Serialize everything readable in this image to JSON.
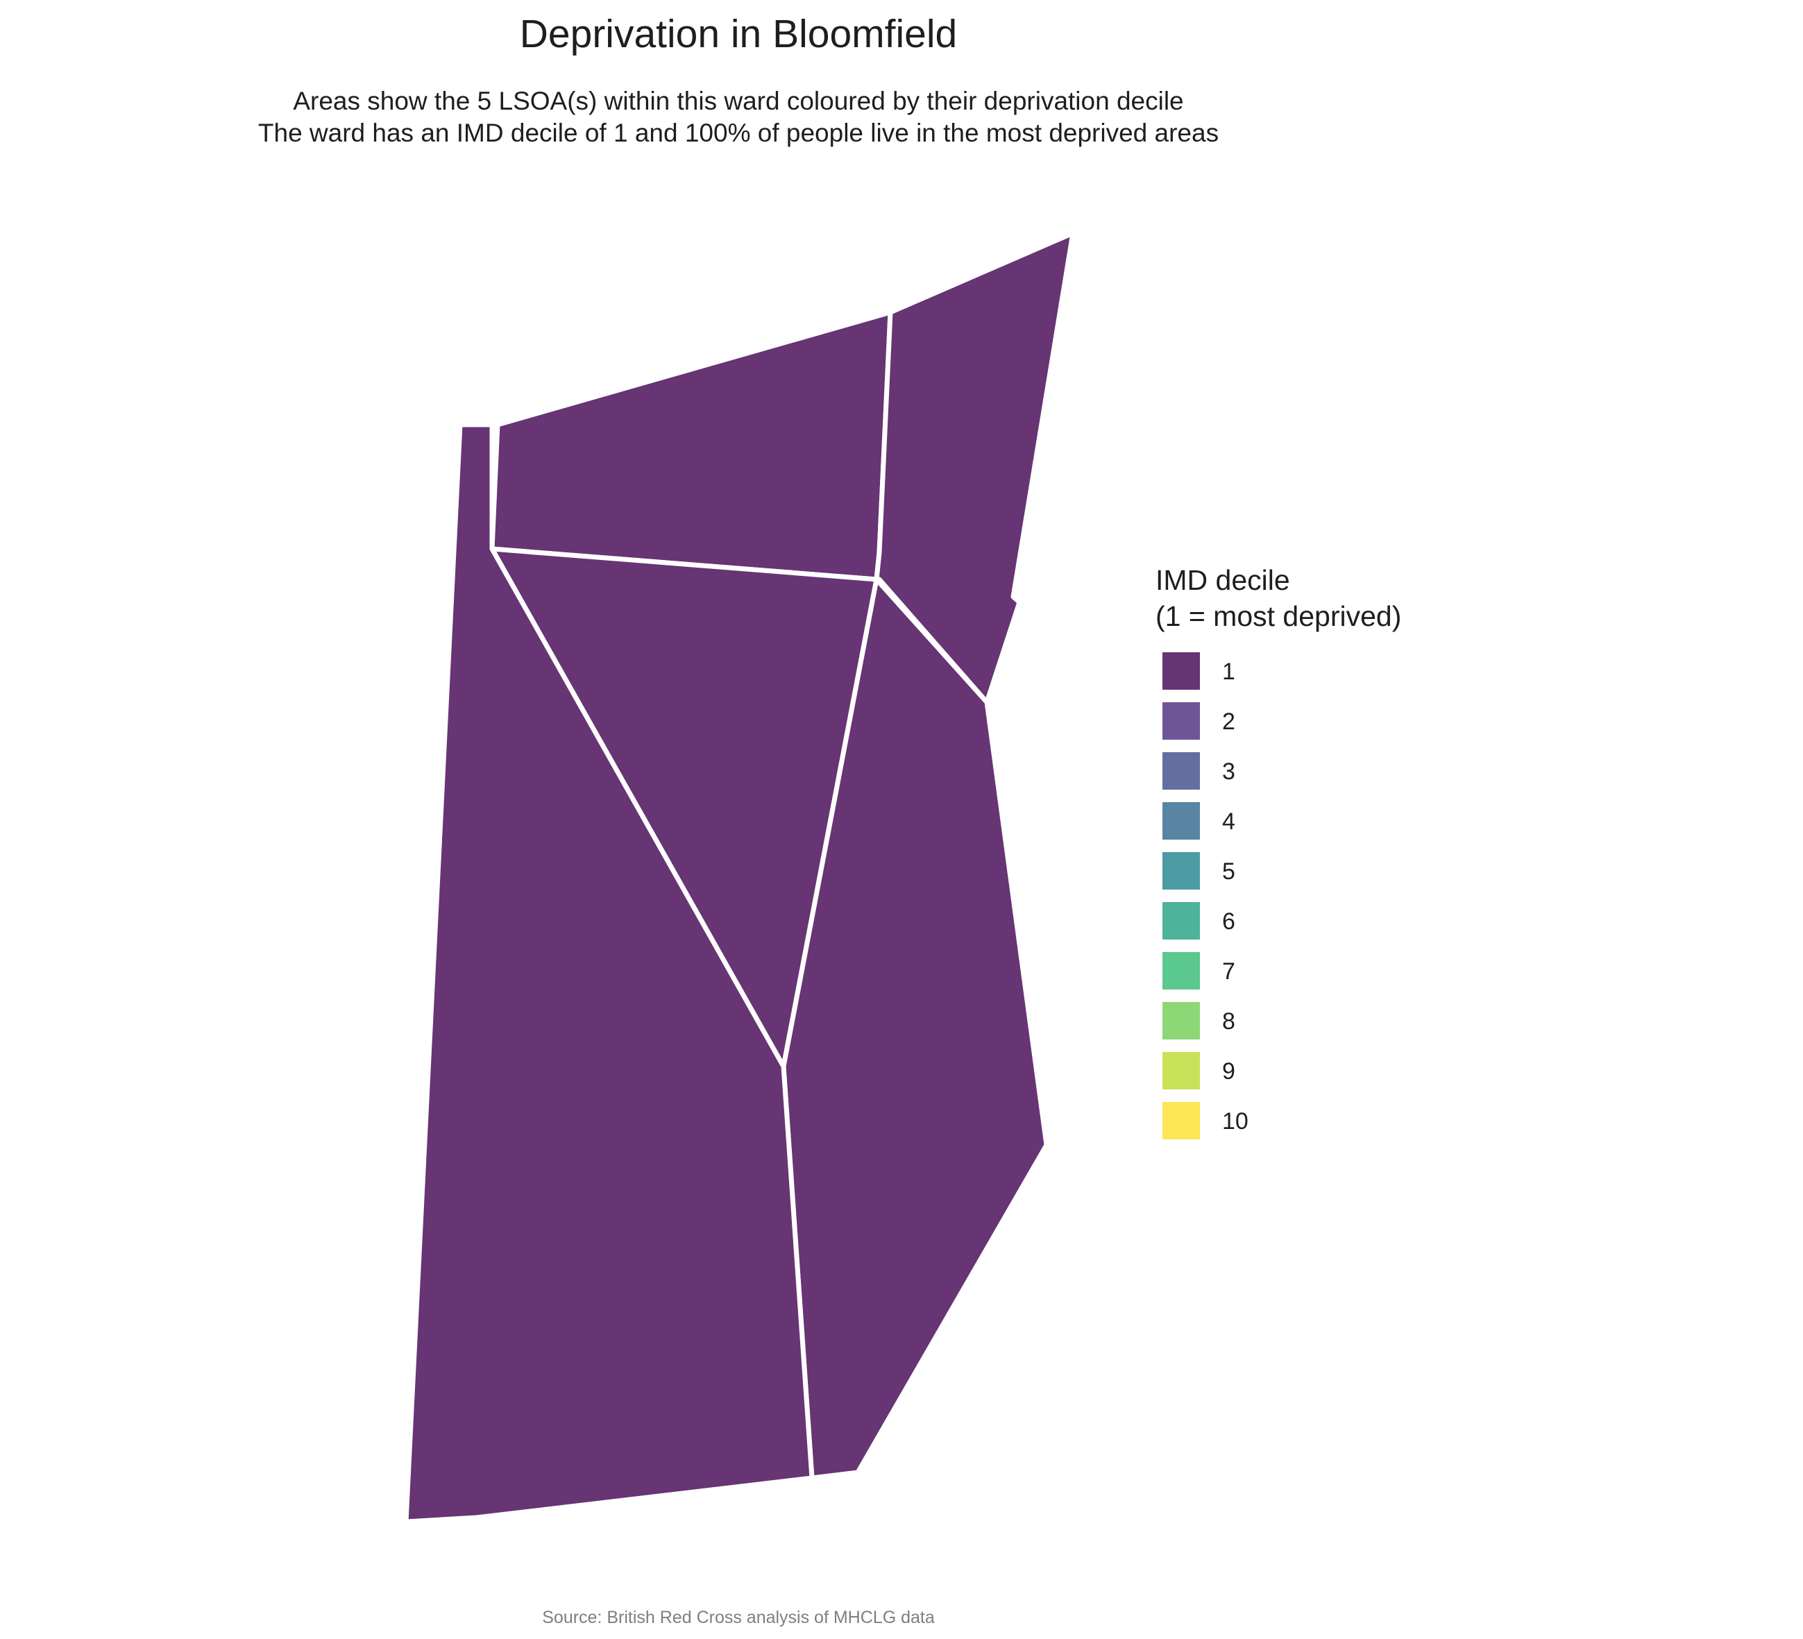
{
  "title": "Deprivation in Bloomfield",
  "subtitle_lines": [
    "Areas show the 5 LSOA(s) within this ward coloured by their deprivation decile",
    "The ward has an IMD decile of 1 and 100% of people live in the most deprived areas"
  ],
  "legend": {
    "title_lines": [
      "IMD decile",
      "(1 = most deprived)"
    ],
    "items": [
      {
        "label": "1",
        "color": "#673474"
      },
      {
        "label": "2",
        "color": "#6E5596"
      },
      {
        "label": "3",
        "color": "#646FA0"
      },
      {
        "label": "4",
        "color": "#5885A3"
      },
      {
        "label": "5",
        "color": "#4D9BA3"
      },
      {
        "label": "6",
        "color": "#4DB39B"
      },
      {
        "label": "7",
        "color": "#5BC88E"
      },
      {
        "label": "8",
        "color": "#8DD776"
      },
      {
        "label": "9",
        "color": "#C8E25A"
      },
      {
        "label": "10",
        "color": "#FBE653"
      }
    ]
  },
  "lsoas": [
    {
      "decile": 1
    },
    {
      "decile": 1
    },
    {
      "decile": 1
    },
    {
      "decile": 1
    },
    {
      "decile": 1
    }
  ],
  "caption": "Source: British Red Cross analysis of MHCLG data"
}
